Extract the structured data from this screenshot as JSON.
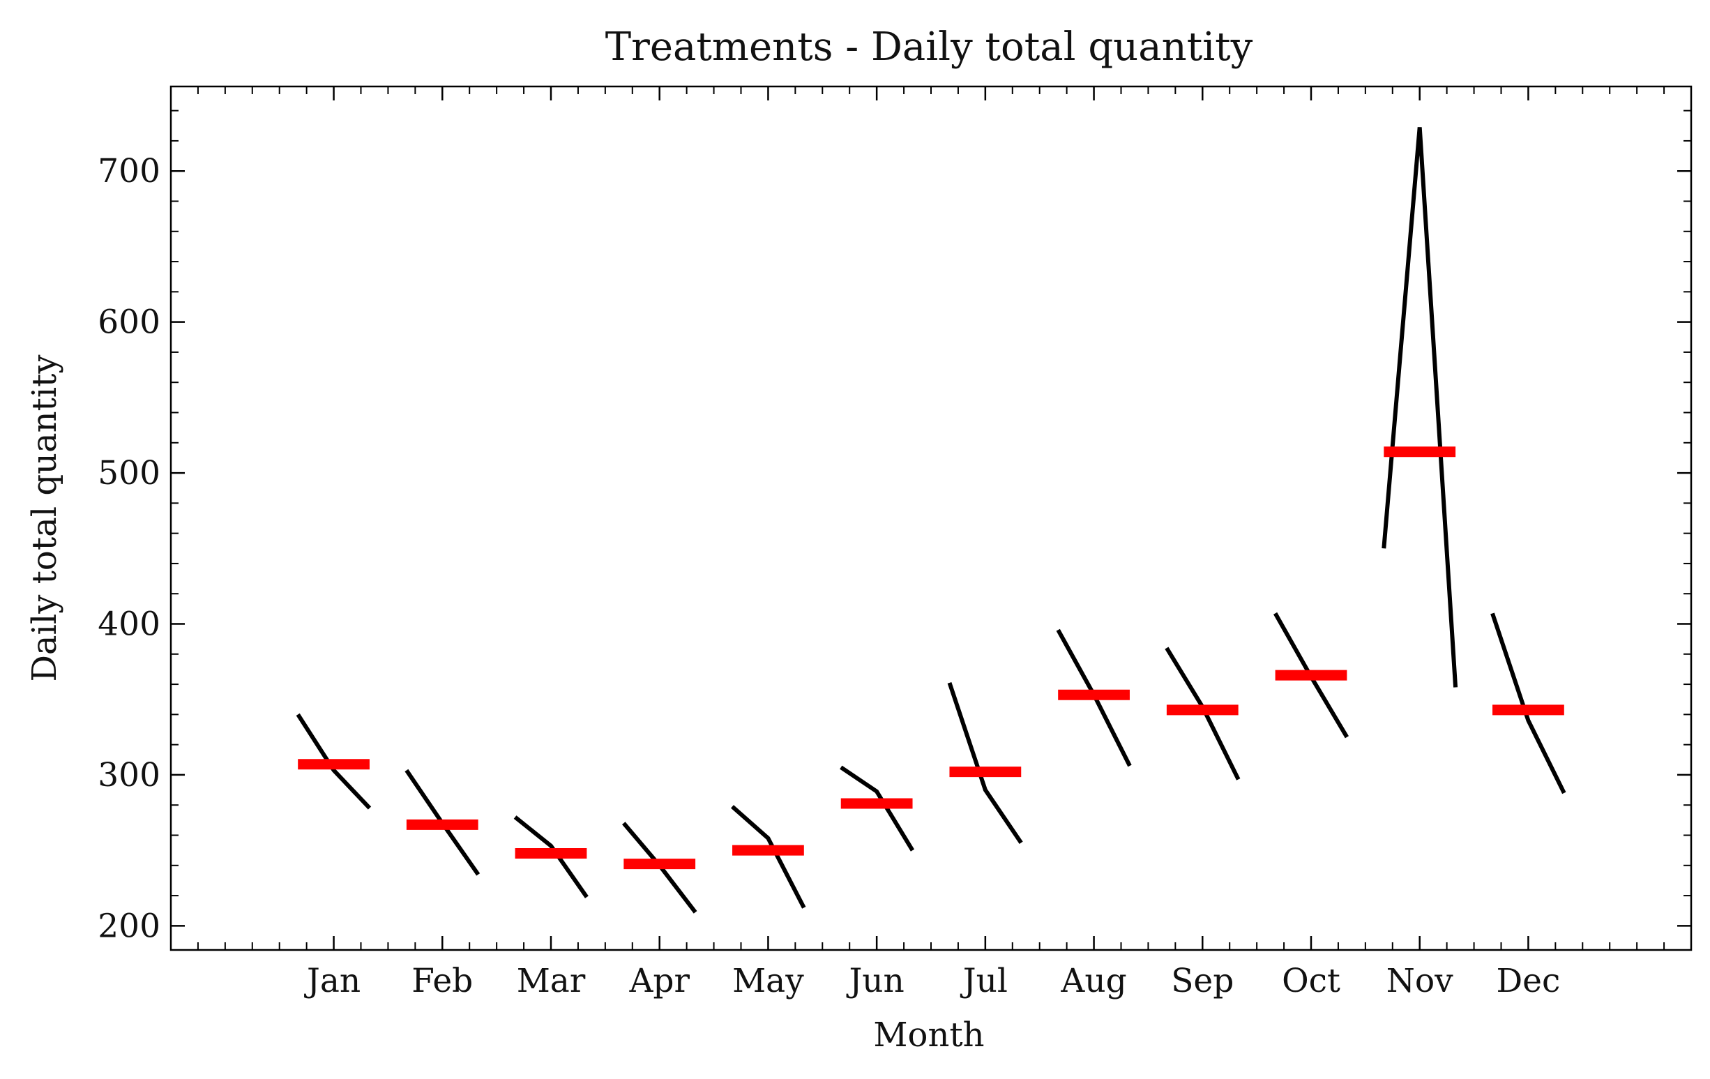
{
  "chart_data": {
    "type": "line",
    "title": "Treatments - Daily total quantity",
    "xlabel": "Month",
    "ylabel": "Daily total quantity",
    "categories": [
      "Jan",
      "Feb",
      "Mar",
      "Apr",
      "May",
      "Jun",
      "Jul",
      "Aug",
      "Sep",
      "Oct",
      "Nov",
      "Dec"
    ],
    "ylim": [
      184,
      756
    ],
    "yticks": [
      200,
      300,
      400,
      500,
      600,
      700
    ],
    "xlim": [
      -1.5,
      12.5
    ],
    "x_minor_step": 0.25,
    "y_minor_step": 20,
    "grid": false,
    "series": [
      {
        "values": [
          [
            340,
            303,
            278
          ],
          [
            303,
            268,
            234
          ],
          [
            272,
            253,
            219
          ],
          [
            268,
            240,
            209
          ],
          [
            279,
            258,
            212
          ],
          [
            305,
            289,
            250
          ],
          [
            361,
            290,
            255
          ],
          [
            396,
            353,
            306
          ],
          [
            384,
            345,
            297
          ],
          [
            407,
            365,
            325
          ],
          [
            450,
            729,
            358
          ],
          [
            407,
            336,
            288
          ]
        ],
        "color": "#000000"
      },
      {
        "values": [
          307,
          267,
          248,
          241,
          250,
          281,
          302,
          353,
          343,
          366,
          514,
          343
        ],
        "color": "#ff0000"
      }
    ]
  }
}
